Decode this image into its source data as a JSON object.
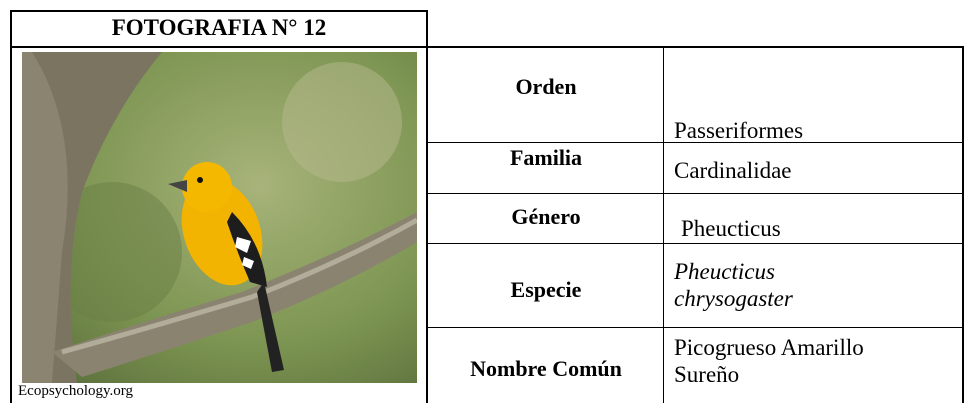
{
  "photo": {
    "title": "FOTOGRAFIA N° 12",
    "credit": "Ecopsychology.org"
  },
  "table": {
    "rows": [
      [
        "Orden",
        "Passeriformes"
      ],
      [
        "Familia",
        "Cardinalidae"
      ],
      [
        "Género",
        "Pheucticus"
      ],
      [
        "Especie",
        "Pheucticus chrysogaster"
      ],
      [
        "Nombre Común",
        "Picogrueso Amarillo Sureño"
      ]
    ]
  }
}
